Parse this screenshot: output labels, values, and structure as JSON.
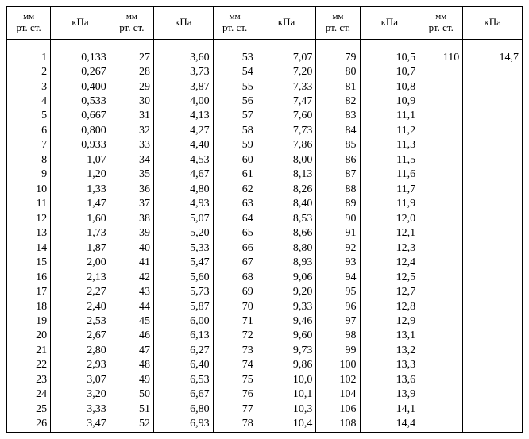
{
  "headers": {
    "mm_line1": "мм",
    "mm_line2": "рт. ст.",
    "kpa": "кПа"
  },
  "style": {
    "font_family": "Times New Roman, serif",
    "font_size_body": 14,
    "font_size_header": 13,
    "font_size_header_small": 11,
    "text_color": "#000000",
    "background_color": "#ffffff",
    "border_color": "#000000",
    "row_line_height": 1.32,
    "column_pairs": 5,
    "rows_per_column": 26
  },
  "data": [
    {
      "mm": "1",
      "kpa": "0,133"
    },
    {
      "mm": "2",
      "kpa": "0,267"
    },
    {
      "mm": "3",
      "kpa": "0,400"
    },
    {
      "mm": "4",
      "kpa": "0,533"
    },
    {
      "mm": "5",
      "kpa": "0,667"
    },
    {
      "mm": "6",
      "kpa": "0,800"
    },
    {
      "mm": "7",
      "kpa": "0,933"
    },
    {
      "mm": "8",
      "kpa": "1,07"
    },
    {
      "mm": "9",
      "kpa": "1,20"
    },
    {
      "mm": "10",
      "kpa": "1,33"
    },
    {
      "mm": "11",
      "kpa": "1,47"
    },
    {
      "mm": "12",
      "kpa": "1,60"
    },
    {
      "mm": "13",
      "kpa": "1,73"
    },
    {
      "mm": "14",
      "kpa": "1,87"
    },
    {
      "mm": "15",
      "kpa": "2,00"
    },
    {
      "mm": "16",
      "kpa": "2,13"
    },
    {
      "mm": "17",
      "kpa": "2,27"
    },
    {
      "mm": "18",
      "kpa": "2,40"
    },
    {
      "mm": "19",
      "kpa": "2,53"
    },
    {
      "mm": "20",
      "kpa": "2,67"
    },
    {
      "mm": "21",
      "kpa": "2,80"
    },
    {
      "mm": "22",
      "kpa": "2,93"
    },
    {
      "mm": "23",
      "kpa": "3,07"
    },
    {
      "mm": "24",
      "kpa": "3,20"
    },
    {
      "mm": "25",
      "kpa": "3,33"
    },
    {
      "mm": "26",
      "kpa": "3,47"
    },
    {
      "mm": "27",
      "kpa": "3,60"
    },
    {
      "mm": "28",
      "kpa": "3,73"
    },
    {
      "mm": "29",
      "kpa": "3,87"
    },
    {
      "mm": "30",
      "kpa": "4,00"
    },
    {
      "mm": "31",
      "kpa": "4,13"
    },
    {
      "mm": "32",
      "kpa": "4,27"
    },
    {
      "mm": "33",
      "kpa": "4,40"
    },
    {
      "mm": "34",
      "kpa": "4,53"
    },
    {
      "mm": "35",
      "kpa": "4,67"
    },
    {
      "mm": "36",
      "kpa": "4,80"
    },
    {
      "mm": "37",
      "kpa": "4,93"
    },
    {
      "mm": "38",
      "kpa": "5,07"
    },
    {
      "mm": "39",
      "kpa": "5,20"
    },
    {
      "mm": "40",
      "kpa": "5,33"
    },
    {
      "mm": "41",
      "kpa": "5,47"
    },
    {
      "mm": "42",
      "kpa": "5,60"
    },
    {
      "mm": "43",
      "kpa": "5,73"
    },
    {
      "mm": "44",
      "kpa": "5,87"
    },
    {
      "mm": "45",
      "kpa": "6,00"
    },
    {
      "mm": "46",
      "kpa": "6,13"
    },
    {
      "mm": "47",
      "kpa": "6,27"
    },
    {
      "mm": "48",
      "kpa": "6,40"
    },
    {
      "mm": "49",
      "kpa": "6,53"
    },
    {
      "mm": "50",
      "kpa": "6,67"
    },
    {
      "mm": "51",
      "kpa": "6,80"
    },
    {
      "mm": "52",
      "kpa": "6,93"
    },
    {
      "mm": "53",
      "kpa": "7,07"
    },
    {
      "mm": "54",
      "kpa": "7,20"
    },
    {
      "mm": "55",
      "kpa": "7,33"
    },
    {
      "mm": "56",
      "kpa": "7,47"
    },
    {
      "mm": "57",
      "kpa": "7,60"
    },
    {
      "mm": "58",
      "kpa": "7,73"
    },
    {
      "mm": "59",
      "kpa": "7,86"
    },
    {
      "mm": "60",
      "kpa": "8,00"
    },
    {
      "mm": "61",
      "kpa": "8,13"
    },
    {
      "mm": "62",
      "kpa": "8,26"
    },
    {
      "mm": "63",
      "kpa": "8,40"
    },
    {
      "mm": "64",
      "kpa": "8,53"
    },
    {
      "mm": "65",
      "kpa": "8,66"
    },
    {
      "mm": "66",
      "kpa": "8,80"
    },
    {
      "mm": "67",
      "kpa": "8,93"
    },
    {
      "mm": "68",
      "kpa": "9,06"
    },
    {
      "mm": "69",
      "kpa": "9,20"
    },
    {
      "mm": "70",
      "kpa": "9,33"
    },
    {
      "mm": "71",
      "kpa": "9,46"
    },
    {
      "mm": "72",
      "kpa": "9,60"
    },
    {
      "mm": "73",
      "kpa": "9,73"
    },
    {
      "mm": "74",
      "kpa": "9,86"
    },
    {
      "mm": "75",
      "kpa": "10,0"
    },
    {
      "mm": "76",
      "kpa": "10,1"
    },
    {
      "mm": "77",
      "kpa": "10,3"
    },
    {
      "mm": "78",
      "kpa": "10,4"
    },
    {
      "mm": "79",
      "kpa": "10,5"
    },
    {
      "mm": "80",
      "kpa": "10,7"
    },
    {
      "mm": "81",
      "kpa": "10,8"
    },
    {
      "mm": "82",
      "kpa": "10,9"
    },
    {
      "mm": "83",
      "kpa": "11,1"
    },
    {
      "mm": "84",
      "kpa": "11,2"
    },
    {
      "mm": "85",
      "kpa": "11,3"
    },
    {
      "mm": "86",
      "kpa": "11,5"
    },
    {
      "mm": "87",
      "kpa": "11,6"
    },
    {
      "mm": "88",
      "kpa": "11,7"
    },
    {
      "mm": "89",
      "kpa": "11,9"
    },
    {
      "mm": "90",
      "kpa": "12,0"
    },
    {
      "mm": "91",
      "kpa": "12,1"
    },
    {
      "mm": "92",
      "kpa": "12,3"
    },
    {
      "mm": "93",
      "kpa": "12,4"
    },
    {
      "mm": "94",
      "kpa": "12,5"
    },
    {
      "mm": "95",
      "kpa": "12,7"
    },
    {
      "mm": "96",
      "kpa": "12,8"
    },
    {
      "mm": "97",
      "kpa": "12,9"
    },
    {
      "mm": "98",
      "kpa": "13,1"
    },
    {
      "mm": "99",
      "kpa": "13,2"
    },
    {
      "mm": "100",
      "kpa": "13,3"
    },
    {
      "mm": "102",
      "kpa": "13,6"
    },
    {
      "mm": "104",
      "kpa": "13,9"
    },
    {
      "mm": "106",
      "kpa": "14,1"
    },
    {
      "mm": "108",
      "kpa": "14,4"
    },
    {
      "mm": "110",
      "kpa": "14,7"
    }
  ]
}
